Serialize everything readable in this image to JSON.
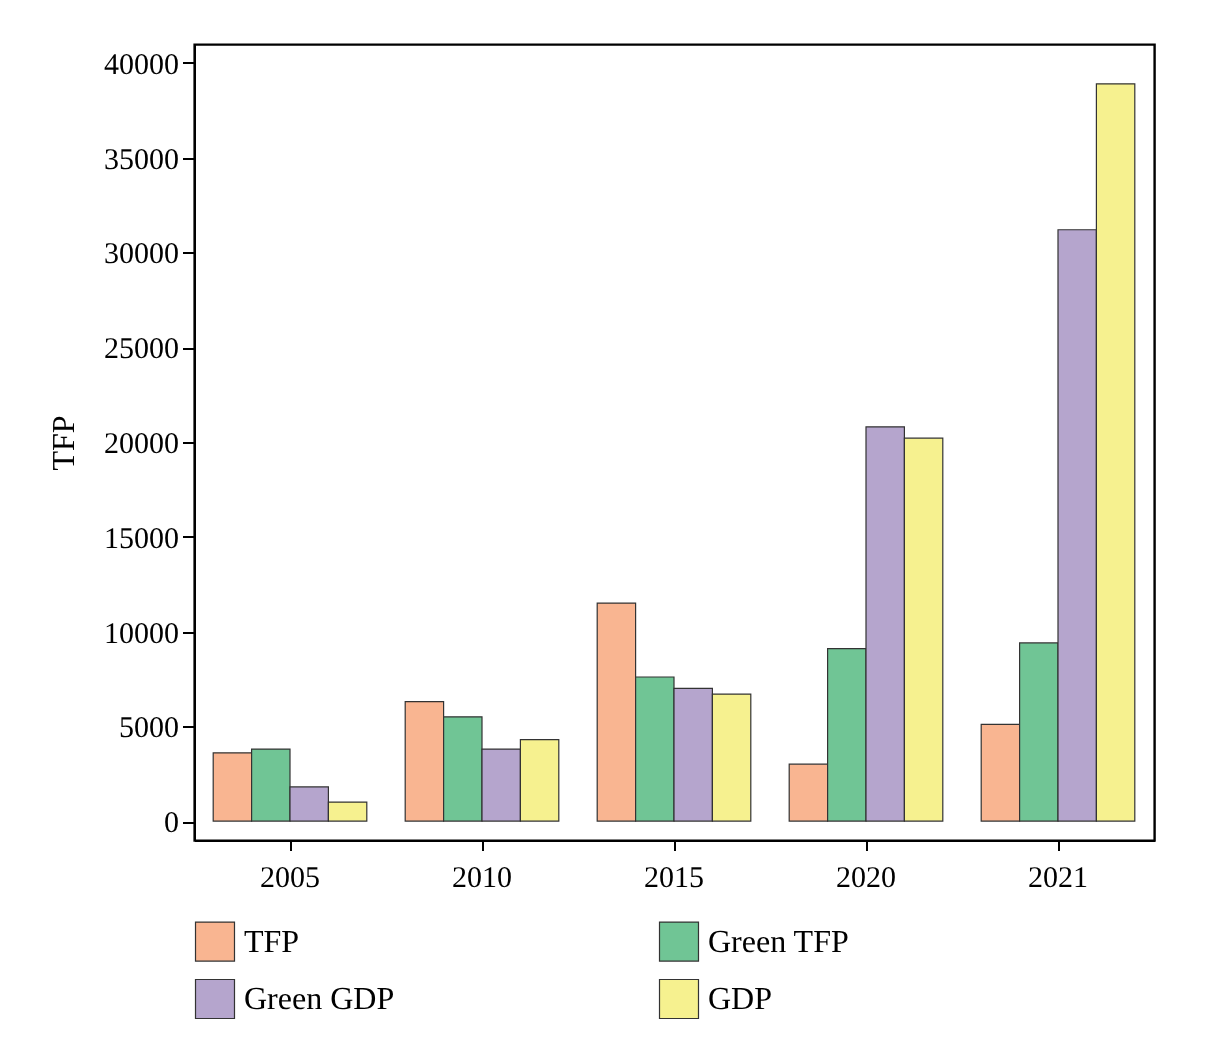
{
  "chart_data": {
    "type": "bar",
    "ylabel": "TFP",
    "categories": [
      "2005",
      "2010",
      "2015",
      "2020",
      "2021"
    ],
    "series": [
      {
        "name": "TFP",
        "color": "#f9b591",
        "values": [
          3600,
          6300,
          11500,
          3000,
          5100
        ]
      },
      {
        "name": "Green TFP",
        "color": "#70c595",
        "values": [
          3800,
          5500,
          7600,
          9100,
          9400
        ]
      },
      {
        "name": "Green GDP",
        "color": "#b5a5cd",
        "values": [
          1800,
          3800,
          7000,
          20800,
          31200
        ]
      },
      {
        "name": "GDP",
        "color": "#f6f18f",
        "values": [
          1000,
          4300,
          6700,
          20200,
          38900
        ]
      }
    ],
    "ylim": [
      -1000,
      41000
    ],
    "yticks": [
      0,
      5000,
      10000,
      15000,
      20000,
      25000,
      30000,
      35000,
      40000
    ],
    "grid": false,
    "legend": "bottom"
  }
}
